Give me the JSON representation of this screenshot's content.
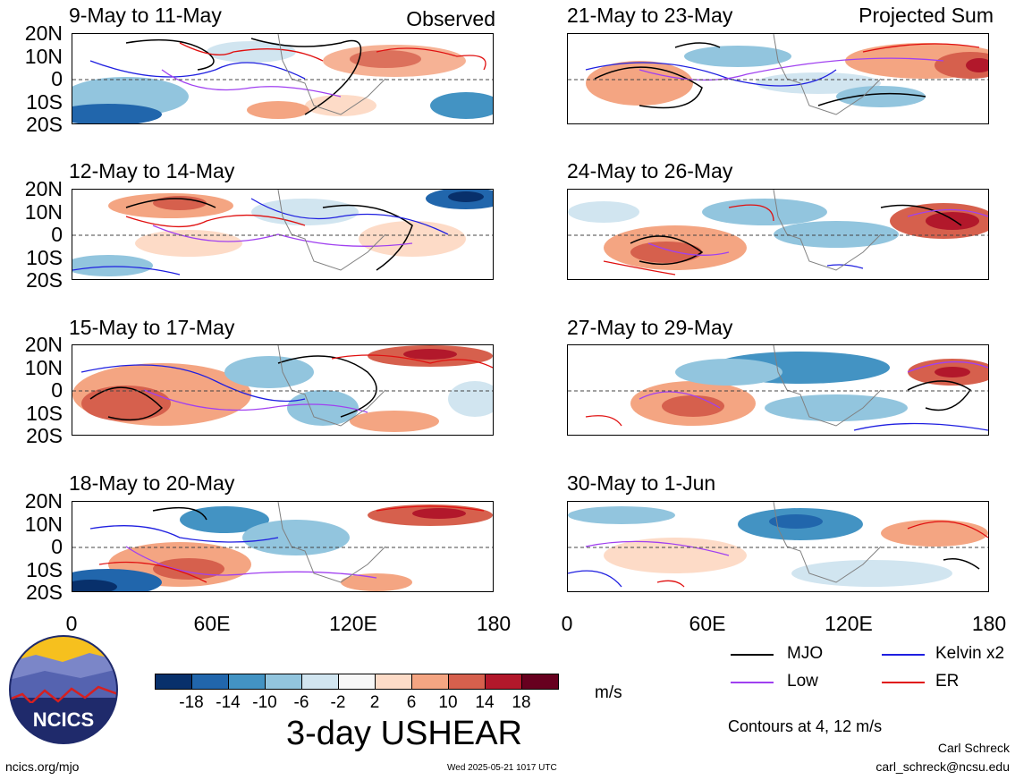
{
  "header": {
    "observed_tag": "Observed",
    "projected_tag": "Projected Sum"
  },
  "panels": [
    {
      "title": "9-May to 11-May"
    },
    {
      "title": "12-May to 14-May"
    },
    {
      "title": "15-May to 17-May"
    },
    {
      "title": "18-May to 20-May"
    },
    {
      "title": "21-May to 23-May"
    },
    {
      "title": "24-May to 26-May"
    },
    {
      "title": "27-May to 29-May"
    },
    {
      "title": "30-May to 1-Jun"
    }
  ],
  "axes": {
    "lat_ticks": [
      "20N",
      "10N",
      "0",
      "10S",
      "20S"
    ],
    "lon_ticks": [
      "0",
      "60E",
      "120E",
      "180"
    ]
  },
  "colorbar": {
    "unit": "m/s",
    "tick_labels": [
      "-18",
      "-14",
      "-10",
      "-6",
      "-2",
      "2",
      "6",
      "10",
      "14",
      "18"
    ],
    "colors": [
      "#08306b",
      "#2166ac",
      "#4393c3",
      "#92c5de",
      "#d1e5f0",
      "#f7f7f7",
      "#fddbc7",
      "#f4a582",
      "#d6604d",
      "#b2182b",
      "#67001f"
    ]
  },
  "product_title": "3-day USHEAR",
  "legend": {
    "items": [
      {
        "label": "MJO",
        "color": "#000000"
      },
      {
        "label": "Kelvin x2",
        "color": "#1f1fe0"
      },
      {
        "label": "Low",
        "color": "#a040f0"
      },
      {
        "label": "ER",
        "color": "#e01010"
      }
    ],
    "contours_note": "Contours at 4, 12 m/s"
  },
  "logo": {
    "text": "NCICS"
  },
  "footer": {
    "url": "ncics.org/mjo",
    "timestamp": "Wed 2025-05-21 1017 UTC",
    "author": "Carl Schreck",
    "email": "carl_schreck@ncsu.edu"
  }
}
